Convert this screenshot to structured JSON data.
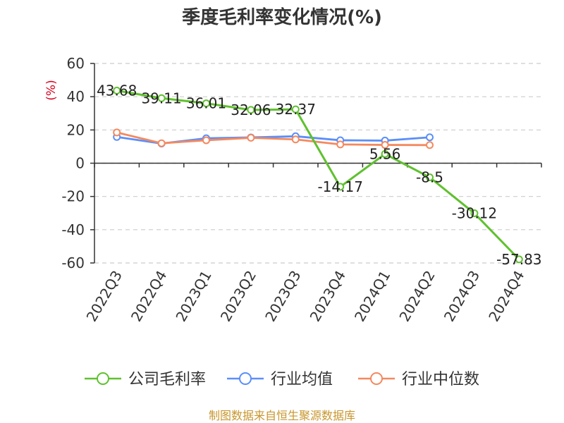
{
  "chart_data": {
    "type": "line",
    "title": "季度毛利率变化情况(%)",
    "ylabel": "(%)",
    "xlabel": "",
    "ylim": [
      -60,
      60
    ],
    "yticks": [
      60,
      40,
      20,
      0,
      -20,
      -40,
      -60
    ],
    "grid": true,
    "legend_position": "bottom",
    "categories": [
      "2022Q3",
      "2022Q4",
      "2023Q1",
      "2023Q2",
      "2023Q3",
      "2023Q4",
      "2024Q1",
      "2024Q2",
      "2024Q3",
      "2024Q4"
    ],
    "series": [
      {
        "name": "公司毛利率",
        "color": "#5fc12e",
        "values": [
          43.68,
          39.11,
          36.01,
          32.06,
          32.37,
          -14.17,
          5.56,
          -8.5,
          -30.12,
          -57.83
        ],
        "labels": [
          "43.68",
          "39.11",
          "36.01",
          "32.06",
          "32.37",
          "-14.17",
          "5.56",
          "-8.5",
          "-30.12",
          "-57.83"
        ]
      },
      {
        "name": "行业均值",
        "color": "#5b8ff9",
        "values": [
          15.8,
          11.8,
          15.0,
          15.5,
          16.2,
          13.8,
          13.6,
          15.6,
          null,
          null
        ]
      },
      {
        "name": "行业中位数",
        "color": "#f4895f",
        "values": [
          18.5,
          12.0,
          13.8,
          15.3,
          14.3,
          11.3,
          11.0,
          10.9,
          null,
          null
        ]
      }
    ]
  },
  "footer": {
    "source": "制图数据来自恒生聚源数据库"
  }
}
